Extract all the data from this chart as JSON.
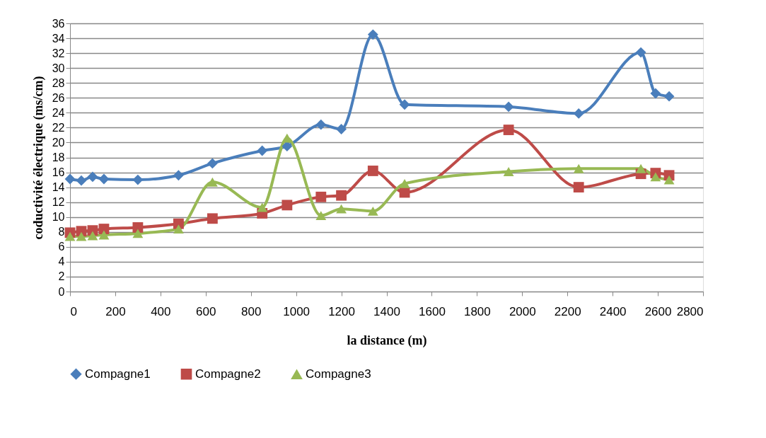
{
  "chart_data": {
    "type": "line",
    "xlabel": "la distance (m)",
    "ylabel": "coductivité électrique (ms/cm)",
    "x": [
      0,
      50,
      100,
      150,
      300,
      480,
      630,
      850,
      960,
      1110,
      1200,
      1340,
      1480,
      1940,
      2250,
      2525,
      2590,
      2650
    ],
    "series": [
      {
        "name": "Compagne1",
        "color": "#4a7ebb",
        "marker": "diamond",
        "values": [
          15.1,
          14.9,
          15.4,
          15.1,
          15.0,
          15.6,
          17.2,
          18.9,
          19.5,
          22.4,
          21.8,
          34.5,
          25.1,
          24.8,
          23.9,
          32.1,
          26.6,
          26.2
        ]
      },
      {
        "name": "Compagne2",
        "color": "#be4b48",
        "marker": "square",
        "values": [
          7.9,
          8.1,
          8.2,
          8.4,
          8.6,
          9.1,
          9.8,
          10.5,
          11.6,
          12.7,
          12.9,
          16.2,
          13.3,
          21.7,
          14.0,
          15.8,
          15.9,
          15.6
        ]
      },
      {
        "name": "Compagne3",
        "color": "#98b954",
        "marker": "triangle",
        "values": [
          7.4,
          7.4,
          7.5,
          7.6,
          7.8,
          8.4,
          14.7,
          11.3,
          20.6,
          10.2,
          11.1,
          10.8,
          14.5,
          16.1,
          16.5,
          16.5,
          15.4,
          15.0
        ]
      }
    ],
    "xlim": [
      0,
      2800
    ],
    "xticks": [
      0,
      200,
      400,
      600,
      800,
      1000,
      1200,
      1400,
      1600,
      1800,
      2000,
      2200,
      2400,
      2600,
      2800
    ],
    "ylim": [
      0,
      36
    ],
    "yticks": [
      0,
      2,
      4,
      6,
      8,
      10,
      12,
      14,
      16,
      18,
      20,
      22,
      24,
      26,
      28,
      30,
      32,
      34,
      36
    ],
    "grid": "y",
    "legend": "bottom",
    "line_style": "solid"
  }
}
